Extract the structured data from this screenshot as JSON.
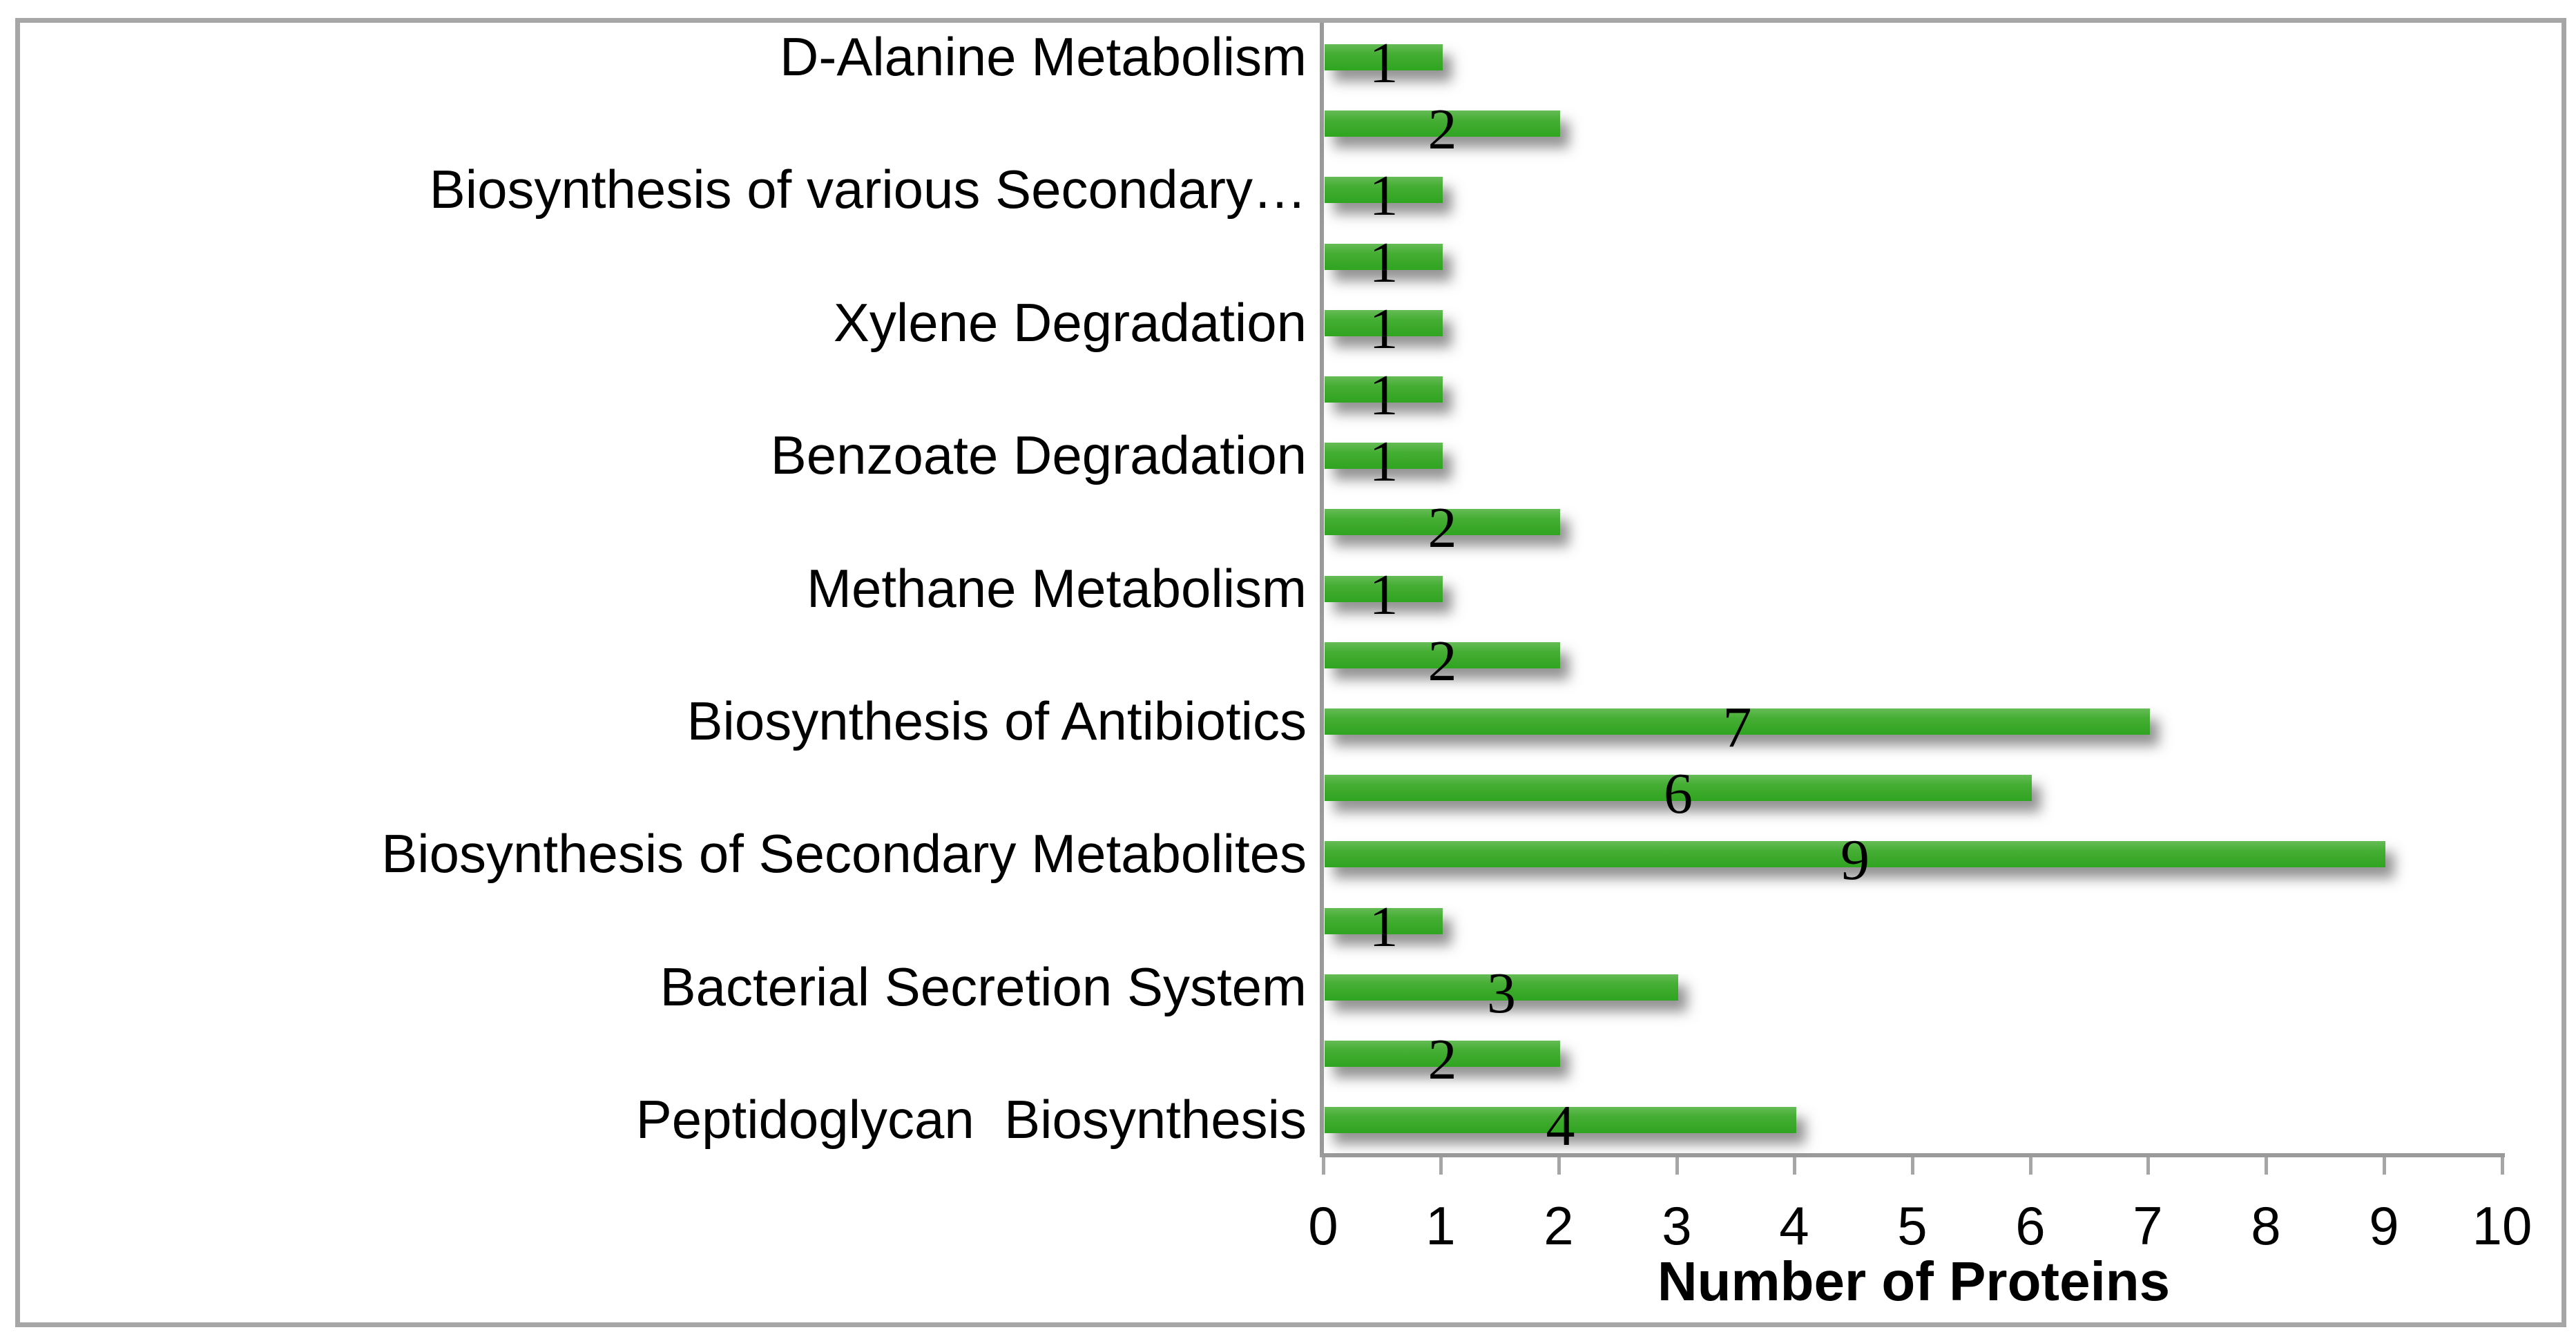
{
  "chart_data": {
    "type": "bar",
    "orientation": "horizontal",
    "title": "",
    "xlabel": "Number of Proteins",
    "ylabel": "",
    "xlim": [
      0,
      10
    ],
    "x_ticks": [
      0,
      1,
      2,
      3,
      4,
      5,
      6,
      7,
      8,
      9,
      10
    ],
    "grid": false,
    "legend": "none",
    "bar_color_top": "#66bc56",
    "bar_color_bottom": "#2fa520",
    "axis_color": "#9a9a9a",
    "frame_color": "#a6a6a6",
    "data_label_color": "#000000",
    "bars": [
      {
        "category": "D-Alanine Metabolism",
        "value": 1
      },
      {
        "category": "",
        "value": 2
      },
      {
        "category": "Biosynthesis of various Secondary…",
        "value": 1
      },
      {
        "category": "",
        "value": 1
      },
      {
        "category": "Xylene Degradation",
        "value": 1
      },
      {
        "category": "",
        "value": 1
      },
      {
        "category": "Benzoate Degradation",
        "value": 1
      },
      {
        "category": "",
        "value": 2
      },
      {
        "category": "Methane Metabolism",
        "value": 1
      },
      {
        "category": "",
        "value": 2
      },
      {
        "category": "Biosynthesis of Antibiotics",
        "value": 7
      },
      {
        "category": "",
        "value": 6
      },
      {
        "category": "Biosynthesis of Secondary Metabolites",
        "value": 9
      },
      {
        "category": "",
        "value": 1
      },
      {
        "category": "Bacterial Secretion System",
        "value": 3
      },
      {
        "category": "",
        "value": 2
      },
      {
        "category": "Peptidoglycan  Biosynthesis",
        "value": 4
      }
    ]
  }
}
